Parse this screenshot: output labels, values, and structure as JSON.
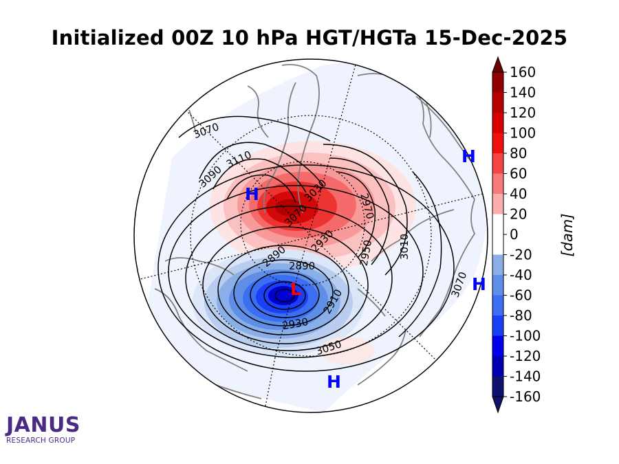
{
  "title": "Initialized 00Z 10 hPa HGT/HGTa 15-Dec-2025",
  "colorbar": {
    "label": "[dam]",
    "ticks": [
      "160",
      "140",
      "120",
      "100",
      "80",
      "60",
      "40",
      "20",
      "0",
      "-20",
      "-40",
      "-60",
      "-80",
      "-100",
      "-120",
      "-140",
      "-160"
    ],
    "colors": [
      "#6e0000",
      "#930000",
      "#b80000",
      "#d80000",
      "#f01010",
      "#f54545",
      "#f87a7a",
      "#fbaeae",
      "#ffffff",
      "#b8cdf0",
      "#8aaee8",
      "#5e8ee6",
      "#3b6ef0",
      "#1a3ff5",
      "#0000f0",
      "#0000b0",
      "#10106e"
    ]
  },
  "contour_labels": [
    "3070",
    "3110",
    "3090",
    "3070",
    "3030",
    "2970",
    "2930",
    "2890",
    "2950",
    "3010",
    "2890",
    "2910",
    "2930",
    "3050",
    "3070"
  ],
  "pressure_centers": [
    {
      "type": "H",
      "color": "#0000ff"
    },
    {
      "type": "H",
      "color": "#0000ff"
    },
    {
      "type": "H",
      "color": "#0000ff"
    },
    {
      "type": "H",
      "color": "#0000ff"
    },
    {
      "type": "L",
      "color": "#ff0000"
    }
  ],
  "logo": {
    "name": "JANUS",
    "sub": "RESEARCH GROUP",
    "color": "#4b2a86"
  }
}
